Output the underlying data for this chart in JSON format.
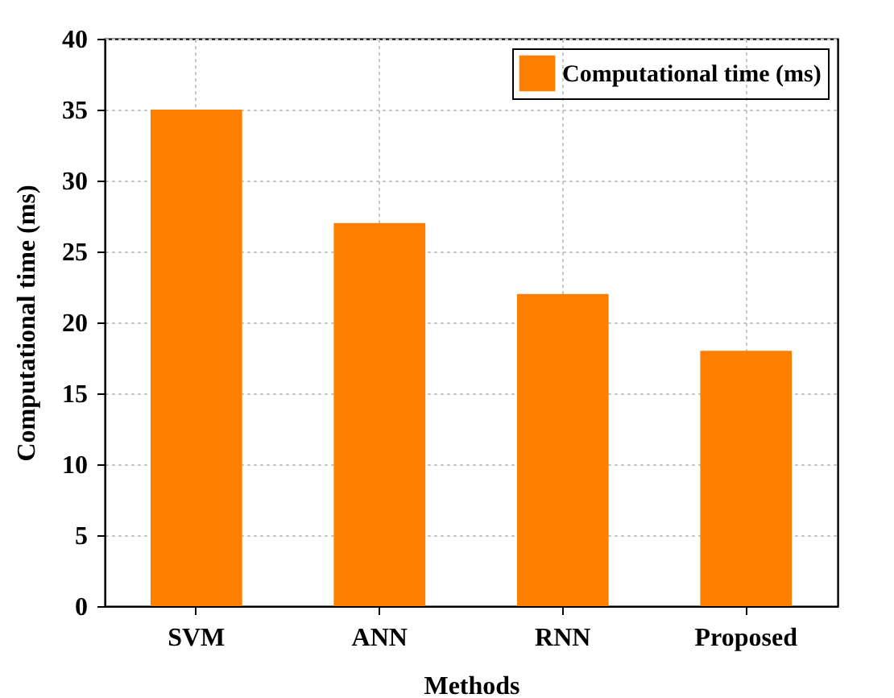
{
  "chart_data": {
    "type": "bar",
    "xlabel": "Methods",
    "ylabel": "Computational time (ms)",
    "categories": [
      "SVM",
      "ANN",
      "RNN",
      "Proposed"
    ],
    "series": [
      {
        "name": "Computational time (ms)",
        "color": "#ff8000",
        "values": [
          35,
          27,
          22,
          18
        ]
      }
    ],
    "ylim": [
      0,
      40
    ],
    "yticks": [
      0,
      5,
      10,
      15,
      20,
      25,
      30,
      35,
      40
    ],
    "grid": true,
    "legend": "top right"
  }
}
